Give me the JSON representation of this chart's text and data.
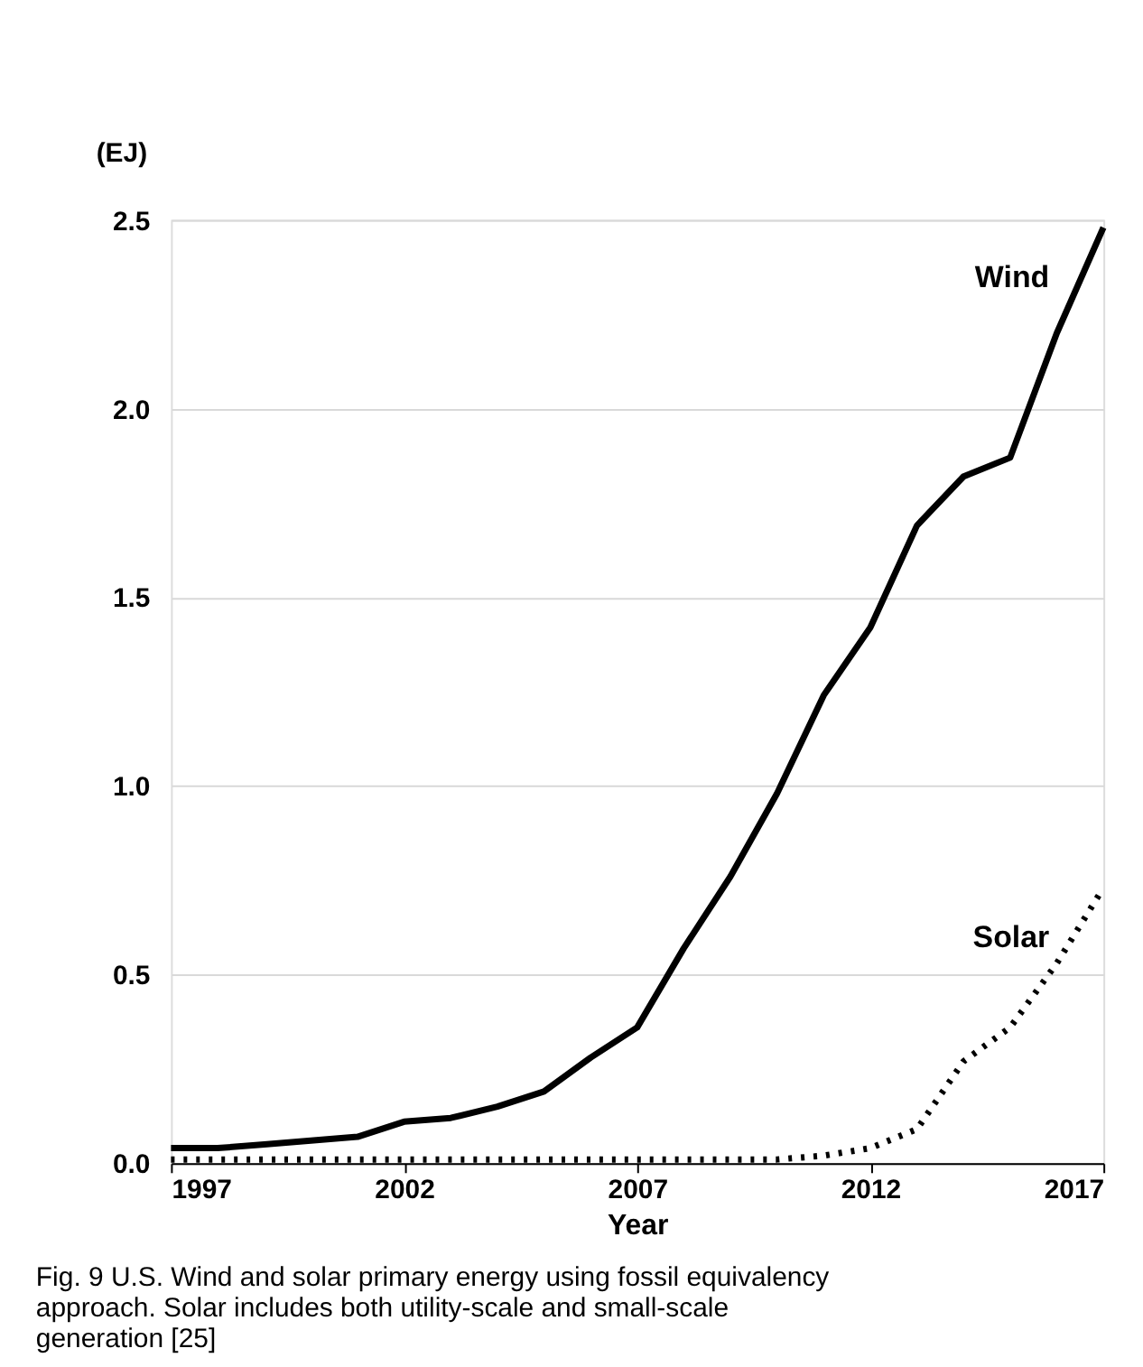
{
  "chart_data": {
    "type": "line",
    "ylabel": "(EJ)",
    "xlabel": "Year",
    "x": [
      1997,
      1998,
      1999,
      2000,
      2001,
      2002,
      2003,
      2004,
      2005,
      2006,
      2007,
      2008,
      2009,
      2010,
      2011,
      2012,
      2013,
      2014,
      2015,
      2016,
      2017
    ],
    "series": [
      {
        "name": "Wind",
        "color": "#000000",
        "line_style": "solid",
        "values": [
          0.04,
          0.04,
          0.05,
          0.06,
          0.07,
          0.11,
          0.12,
          0.15,
          0.19,
          0.28,
          0.36,
          0.57,
          0.76,
          0.98,
          1.24,
          1.42,
          1.69,
          1.82,
          1.87,
          2.2,
          2.48
        ]
      },
      {
        "name": "Solar",
        "color": "#000000",
        "line_style": "dotted",
        "values": [
          0.01,
          0.01,
          0.01,
          0.01,
          0.01,
          0.01,
          0.01,
          0.01,
          0.01,
          0.01,
          0.01,
          0.01,
          0.01,
          0.01,
          0.02,
          0.04,
          0.09,
          0.27,
          0.36,
          0.53,
          0.73
        ]
      }
    ],
    "xlim": [
      1997,
      2017
    ],
    "xticks": [
      1997,
      2002,
      2007,
      2012,
      2017
    ],
    "ylim": [
      0,
      2.5
    ],
    "yticks": [
      {
        "value": 0,
        "label": "0.0"
      },
      0.5,
      {
        "value": 1,
        "label": "1.0"
      },
      1.5,
      {
        "value": 2,
        "label": "2.0"
      },
      2.5
    ],
    "grid": "y",
    "marker": "none",
    "annotations": [
      "Fig. 9 U.S. Wind and solar primary energy using fossil equivalency approach. Solar includes both utility-scale and small-scale generation [25]"
    ]
  }
}
